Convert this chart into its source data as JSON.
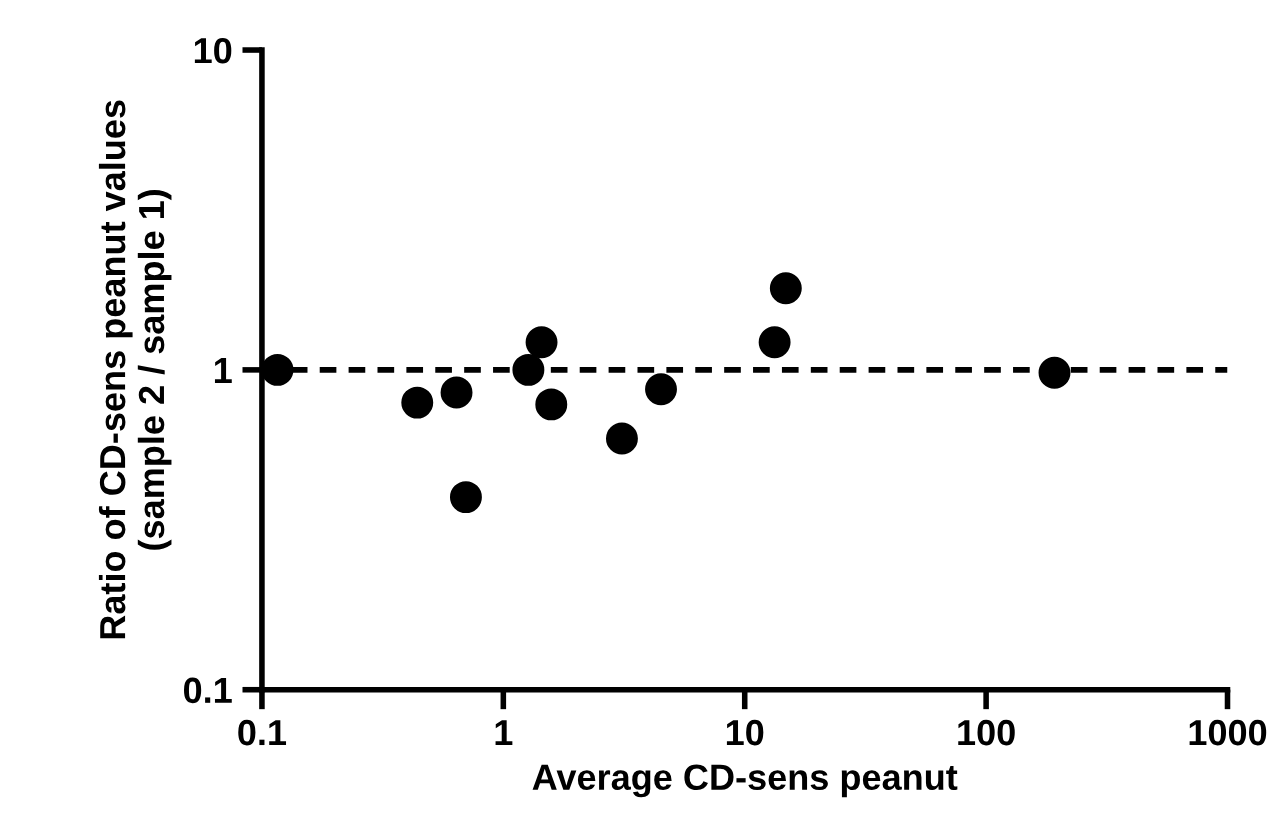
{
  "chart_data": {
    "type": "scatter",
    "xlabel": "Average CD-sens peanut",
    "ylabel": "Ratio of CD-sens peanut values\n(sample 2 / sample 1)",
    "x": [
      0.116,
      0.44,
      0.64,
      0.7,
      1.27,
      1.44,
      1.58,
      3.1,
      4.5,
      13.3,
      14.8,
      192
    ],
    "values": [
      1.0,
      0.79,
      0.85,
      0.4,
      1.0,
      1.22,
      0.78,
      0.61,
      0.87,
      1.22,
      1.8,
      0.98
    ],
    "color": "#000000",
    "marker": "circle",
    "log": "xy",
    "xlim": [
      0.1,
      1000
    ],
    "xticks": [
      0.1,
      1,
      10,
      100,
      1000
    ],
    "ylim": [
      0.1,
      10
    ],
    "yticks": [
      0.1,
      1,
      10
    ],
    "ref_lines": [
      {
        "axis": "y",
        "value": 1,
        "color": "#000000",
        "line_style": "dashed"
      }
    ],
    "grid": false,
    "legend": false
  }
}
